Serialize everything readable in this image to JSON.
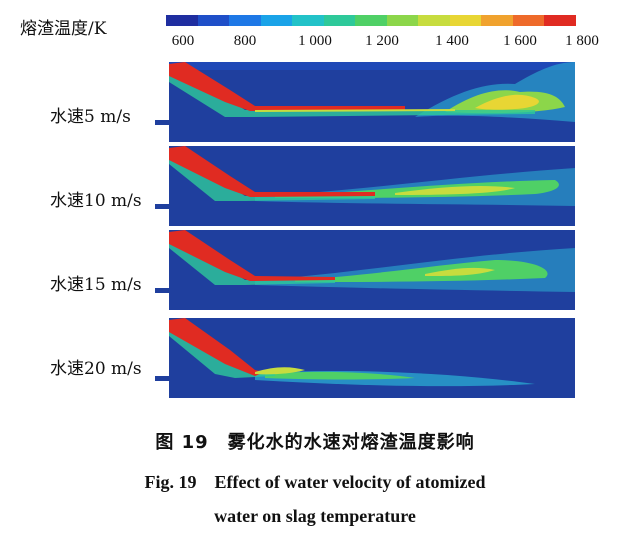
{
  "legend": {
    "title": "熔渣温度/K",
    "ticks": [
      "600",
      "800",
      "1 000",
      "1 200",
      "1 400",
      "1 600",
      "1 800"
    ],
    "colors": [
      "#1f2ea0",
      "#1f4fc8",
      "#1e78e6",
      "#1aa3e8",
      "#22c2c8",
      "#2ec99a",
      "#4fd066",
      "#8cd64a",
      "#c7dc3e",
      "#e8d634",
      "#f0a22e",
      "#ee6a2a",
      "#e02b22"
    ]
  },
  "panels": [
    {
      "label": "水速5 m/s"
    },
    {
      "label": "水速10 m/s"
    },
    {
      "label": "水速15 m/s"
    },
    {
      "label": "水速20 m/s"
    }
  ],
  "caption": {
    "zh": "图 19　雾化水的水速对熔渣温度影响",
    "en_line1": "Fig. 19　Effect of water velocity of atomized",
    "en_line2": "water on slag temperature"
  }
}
